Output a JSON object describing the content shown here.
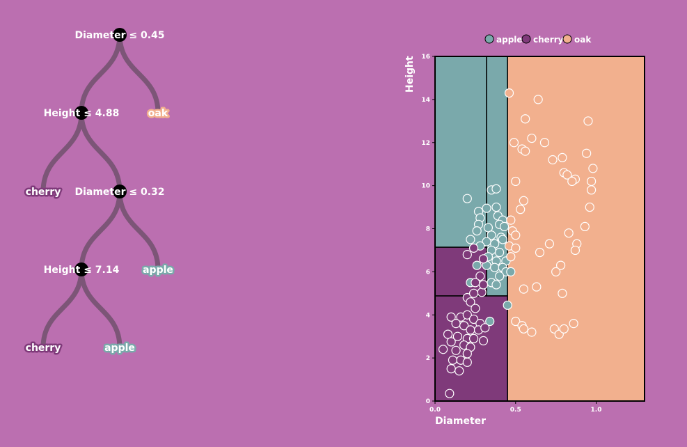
{
  "colors": {
    "background": "#bb6fb0",
    "apple": "#7aa9ab",
    "cherry": "#7f3a7a",
    "oak": "#f2b08e",
    "link": "#7c5577",
    "node": "#000000",
    "axis": "#000000",
    "text": "#ffffff"
  },
  "tree": {
    "nodes": [
      {
        "id": "n0",
        "label": "Diameter ≤ 0.45",
        "kind": "split"
      },
      {
        "id": "n1",
        "label": "Height ≤ 4.88",
        "kind": "split",
        "parent": "n0"
      },
      {
        "id": "n2",
        "label": "oak",
        "kind": "leaf",
        "class": "oak",
        "parent": "n0"
      },
      {
        "id": "n3",
        "label": "cherry",
        "kind": "leaf",
        "class": "cherry",
        "parent": "n1"
      },
      {
        "id": "n4",
        "label": "Diameter ≤ 0.32",
        "kind": "split",
        "parent": "n1"
      },
      {
        "id": "n5",
        "label": "Height ≤ 7.14",
        "kind": "split",
        "parent": "n4"
      },
      {
        "id": "n6",
        "label": "apple",
        "kind": "leaf",
        "class": "apple",
        "parent": "n4"
      },
      {
        "id": "n7",
        "label": "cherry",
        "kind": "leaf",
        "class": "cherry",
        "parent": "n5"
      },
      {
        "id": "n8",
        "label": "apple",
        "kind": "leaf",
        "class": "apple",
        "parent": "n5"
      }
    ]
  },
  "chart_data": {
    "type": "scatter",
    "xlabel": "Diameter",
    "ylabel": "Height",
    "xlim": [
      0,
      1.3
    ],
    "ylim": [
      0,
      16
    ],
    "xticks": [
      0.0,
      0.5,
      1.0
    ],
    "xtick_labels": [
      "0.0",
      "0.5",
      "1.0"
    ],
    "yticks": [
      0,
      2,
      4,
      6,
      8,
      10,
      12,
      14,
      16
    ],
    "ytick_labels": [
      "0",
      "2",
      "4",
      "6",
      "8",
      "10",
      "12",
      "14",
      "16"
    ],
    "grid": false,
    "legend": {
      "placement": "top",
      "entries": [
        "apple",
        "cherry",
        "oak"
      ]
    },
    "regions": [
      {
        "class": "apple",
        "x": [
          0,
          0.32
        ],
        "y": [
          7.14,
          16
        ]
      },
      {
        "class": "apple",
        "x": [
          0.32,
          0.45
        ],
        "y": [
          4.88,
          16
        ]
      },
      {
        "class": "cherry",
        "x": [
          0,
          0.32
        ],
        "y": [
          4.88,
          7.14
        ]
      },
      {
        "class": "cherry",
        "x": [
          0,
          0.45
        ],
        "y": [
          0,
          4.88
        ]
      },
      {
        "class": "oak",
        "x": [
          0.45,
          1.3
        ],
        "y": [
          0,
          16
        ]
      }
    ],
    "series": [
      {
        "name": "apple",
        "points": [
          [
            0.2,
            9.4
          ],
          [
            0.35,
            9.8
          ],
          [
            0.38,
            9.85
          ],
          [
            0.27,
            8.8
          ],
          [
            0.32,
            8.95
          ],
          [
            0.38,
            9.0
          ],
          [
            0.28,
            8.5
          ],
          [
            0.39,
            8.6
          ],
          [
            0.42,
            8.4
          ],
          [
            0.27,
            8.2
          ],
          [
            0.33,
            8.05
          ],
          [
            0.4,
            8.2
          ],
          [
            0.43,
            8.1
          ],
          [
            0.26,
            7.9
          ],
          [
            0.35,
            7.7
          ],
          [
            0.41,
            7.6
          ],
          [
            0.22,
            7.5
          ],
          [
            0.32,
            7.4
          ],
          [
            0.37,
            7.3
          ],
          [
            0.42,
            7.5
          ],
          [
            0.28,
            7.2
          ],
          [
            0.35,
            7.0
          ],
          [
            0.4,
            6.9
          ],
          [
            0.33,
            6.7
          ],
          [
            0.38,
            6.5
          ],
          [
            0.44,
            6.5
          ],
          [
            0.32,
            6.3
          ],
          [
            0.37,
            6.2
          ],
          [
            0.42,
            6.2
          ],
          [
            0.44,
            6.0
          ],
          [
            0.26,
            6.3
          ],
          [
            0.4,
            5.8
          ],
          [
            0.47,
            6.0
          ],
          [
            0.35,
            5.5
          ],
          [
            0.38,
            5.4
          ],
          [
            0.45,
            4.45
          ],
          [
            0.34,
            3.7
          ],
          [
            0.22,
            5.5
          ]
        ]
      },
      {
        "name": "cherry",
        "points": [
          [
            0.2,
            6.8
          ],
          [
            0.24,
            7.1
          ],
          [
            0.3,
            6.6
          ],
          [
            0.28,
            5.8
          ],
          [
            0.25,
            5.5
          ],
          [
            0.29,
            5.05
          ],
          [
            0.3,
            5.4
          ],
          [
            0.2,
            4.8
          ],
          [
            0.22,
            4.6
          ],
          [
            0.25,
            4.3
          ],
          [
            0.16,
            3.9
          ],
          [
            0.2,
            4.0
          ],
          [
            0.24,
            3.8
          ],
          [
            0.28,
            3.6
          ],
          [
            0.1,
            3.9
          ],
          [
            0.13,
            3.6
          ],
          [
            0.18,
            3.5
          ],
          [
            0.22,
            3.3
          ],
          [
            0.27,
            3.3
          ],
          [
            0.31,
            3.4
          ],
          [
            0.08,
            3.1
          ],
          [
            0.14,
            3.0
          ],
          [
            0.2,
            2.9
          ],
          [
            0.24,
            2.9
          ],
          [
            0.3,
            2.8
          ],
          [
            0.1,
            2.75
          ],
          [
            0.18,
            2.6
          ],
          [
            0.22,
            2.5
          ],
          [
            0.05,
            2.4
          ],
          [
            0.13,
            2.35
          ],
          [
            0.2,
            2.2
          ],
          [
            0.11,
            1.9
          ],
          [
            0.16,
            1.9
          ],
          [
            0.2,
            1.8
          ],
          [
            0.1,
            1.5
          ],
          [
            0.15,
            1.4
          ],
          [
            0.09,
            0.35
          ],
          [
            0.24,
            5.0
          ]
        ]
      },
      {
        "name": "oak",
        "points": [
          [
            0.46,
            14.3
          ],
          [
            0.64,
            14.0
          ],
          [
            0.95,
            13.0
          ],
          [
            0.56,
            13.1
          ],
          [
            0.49,
            12.0
          ],
          [
            0.6,
            12.2
          ],
          [
            0.68,
            12.0
          ],
          [
            0.54,
            11.7
          ],
          [
            0.56,
            11.6
          ],
          [
            0.73,
            11.2
          ],
          [
            0.79,
            11.3
          ],
          [
            0.94,
            11.5
          ],
          [
            0.8,
            10.6
          ],
          [
            0.82,
            10.5
          ],
          [
            0.87,
            10.3
          ],
          [
            0.85,
            10.2
          ],
          [
            0.97,
            10.2
          ],
          [
            0.98,
            10.8
          ],
          [
            0.5,
            10.2
          ],
          [
            0.97,
            9.8
          ],
          [
            0.55,
            9.3
          ],
          [
            0.53,
            8.9
          ],
          [
            0.96,
            9.0
          ],
          [
            0.47,
            8.4
          ],
          [
            0.93,
            8.1
          ],
          [
            0.48,
            7.9
          ],
          [
            0.5,
            7.7
          ],
          [
            0.83,
            7.8
          ],
          [
            0.46,
            7.2
          ],
          [
            0.5,
            7.1
          ],
          [
            0.88,
            7.3
          ],
          [
            0.71,
            7.3
          ],
          [
            0.65,
            6.9
          ],
          [
            0.87,
            7.0
          ],
          [
            0.78,
            6.3
          ],
          [
            0.75,
            6.0
          ],
          [
            0.47,
            6.7
          ],
          [
            0.55,
            5.2
          ],
          [
            0.63,
            5.3
          ],
          [
            0.79,
            5.0
          ],
          [
            0.5,
            3.7
          ],
          [
            0.54,
            3.5
          ],
          [
            0.55,
            3.35
          ],
          [
            0.6,
            3.2
          ],
          [
            0.74,
            3.35
          ],
          [
            0.77,
            3.1
          ],
          [
            0.8,
            3.35
          ],
          [
            0.86,
            3.6
          ]
        ]
      }
    ]
  }
}
